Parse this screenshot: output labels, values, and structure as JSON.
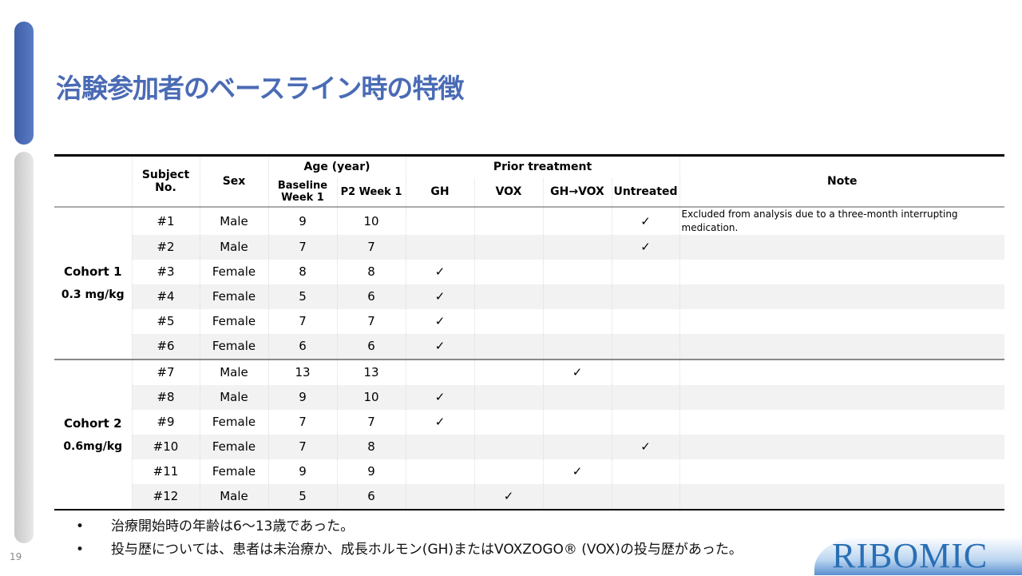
{
  "page": {
    "title": "治験参加者のベースライン時の特徴",
    "page_number": "19",
    "logo": "RIBOMIC"
  },
  "table": {
    "headers": {
      "subject": "Subject No.",
      "sex": "Sex",
      "age": "Age (year)",
      "baseline": "Baseline Week 1",
      "p2": "P2 Week 1",
      "prior": "Prior treatment",
      "gh": "GH",
      "vox": "VOX",
      "ghvox": "GH→VOX",
      "untreated": "Untreated",
      "note": "Note"
    },
    "cohorts": [
      {
        "name": "Cohort 1",
        "dose": "0.3 mg/kg"
      },
      {
        "name": "Cohort 2",
        "dose": "0.6mg/kg"
      }
    ],
    "check": "✓",
    "rows": [
      {
        "id": "#1",
        "sex": "Male",
        "baseline": "9",
        "p2": "10",
        "treatment": "untreated",
        "note": "Excluded from analysis due to a three-month interrupting medication."
      },
      {
        "id": "#2",
        "sex": "Male",
        "baseline": "7",
        "p2": "7",
        "treatment": "untreated",
        "note": ""
      },
      {
        "id": "#3",
        "sex": "Female",
        "baseline": "8",
        "p2": "8",
        "treatment": "gh",
        "note": ""
      },
      {
        "id": "#4",
        "sex": "Female",
        "baseline": "5",
        "p2": "6",
        "treatment": "gh",
        "note": ""
      },
      {
        "id": "#5",
        "sex": "Female",
        "baseline": "7",
        "p2": "7",
        "treatment": "gh",
        "note": ""
      },
      {
        "id": "#6",
        "sex": "Female",
        "baseline": "6",
        "p2": "6",
        "treatment": "gh",
        "note": ""
      },
      {
        "id": "#7",
        "sex": "Male",
        "baseline": "13",
        "p2": "13",
        "treatment": "ghvox",
        "note": ""
      },
      {
        "id": "#8",
        "sex": "Male",
        "baseline": "9",
        "p2": "10",
        "treatment": "gh",
        "note": ""
      },
      {
        "id": "#9",
        "sex": "Female",
        "baseline": "7",
        "p2": "7",
        "treatment": "gh",
        "note": ""
      },
      {
        "id": "#10",
        "sex": "Female",
        "baseline": "7",
        "p2": "8",
        "treatment": "untreated",
        "note": ""
      },
      {
        "id": "#11",
        "sex": "Female",
        "baseline": "9",
        "p2": "9",
        "treatment": "ghvox",
        "note": ""
      },
      {
        "id": "#12",
        "sex": "Male",
        "baseline": "5",
        "p2": "6",
        "treatment": "vox",
        "note": ""
      }
    ]
  },
  "bullets": [
    "治療開始時の年齢は6～13歳であった。",
    "投与歴については、患者は未治療か、成長ホルモン(GH)またはVOXZOGO® (VOX)の投与歴があった。"
  ]
}
